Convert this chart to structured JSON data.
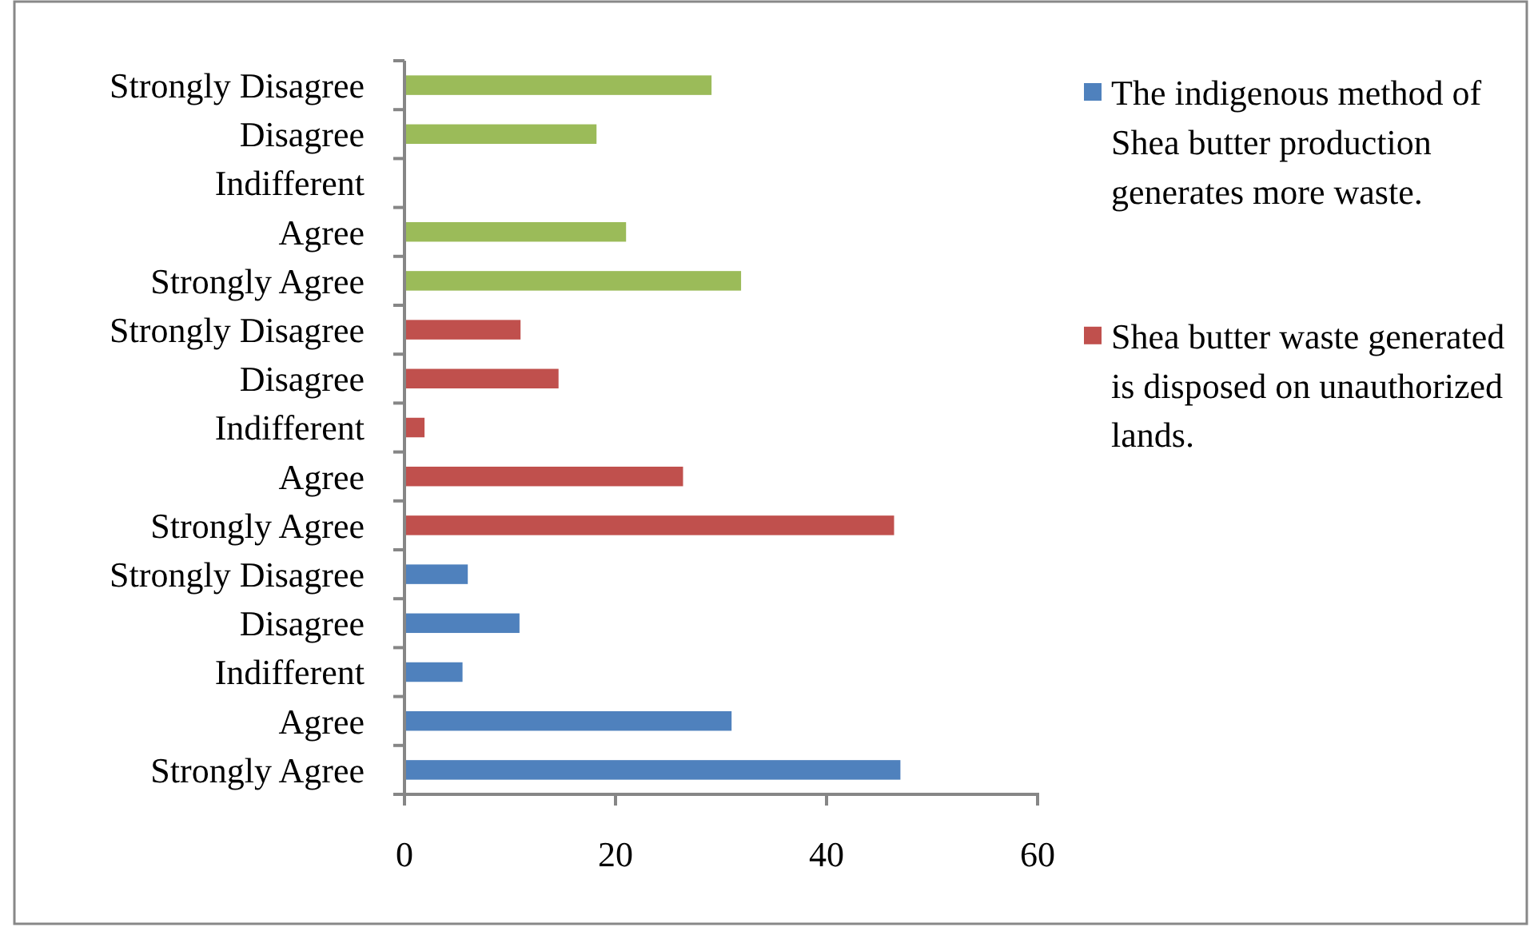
{
  "chart_data": {
    "type": "bar",
    "orientation": "horizontal",
    "categories": [
      "Strongly Disagree",
      "Disagree",
      "Indifferent",
      "Agree",
      "Strongly Agree",
      "Strongly Disagree",
      "Disagree",
      "Indifferent",
      "Agree",
      "Strongly Agree",
      "Strongly Disagree",
      "Disagree",
      "Indifferent",
      "Agree",
      "Strongly Agree"
    ],
    "series": [
      {
        "color": "#9bbb59",
        "values": [
          29.1,
          18.2,
          null,
          21.0,
          31.9,
          null,
          null,
          null,
          null,
          null,
          null,
          null,
          null,
          null,
          null
        ]
      },
      {
        "name": "Shea butter waste generated is disposed on unauthorized lands.",
        "color": "#c0504d",
        "values": [
          null,
          null,
          null,
          null,
          null,
          11.0,
          14.6,
          1.9,
          26.4,
          46.4,
          null,
          null,
          null,
          null,
          null
        ]
      },
      {
        "name": "The indigenous method of Shea butter production generates more waste.",
        "color": "#4f81bd",
        "values": [
          null,
          null,
          null,
          null,
          null,
          null,
          null,
          null,
          null,
          null,
          6.0,
          10.9,
          5.5,
          31.0,
          47.0
        ]
      }
    ],
    "xlim": [
      0,
      60
    ],
    "xticks": [
      0,
      20,
      40,
      60
    ],
    "legend": "right",
    "grid": false
  }
}
